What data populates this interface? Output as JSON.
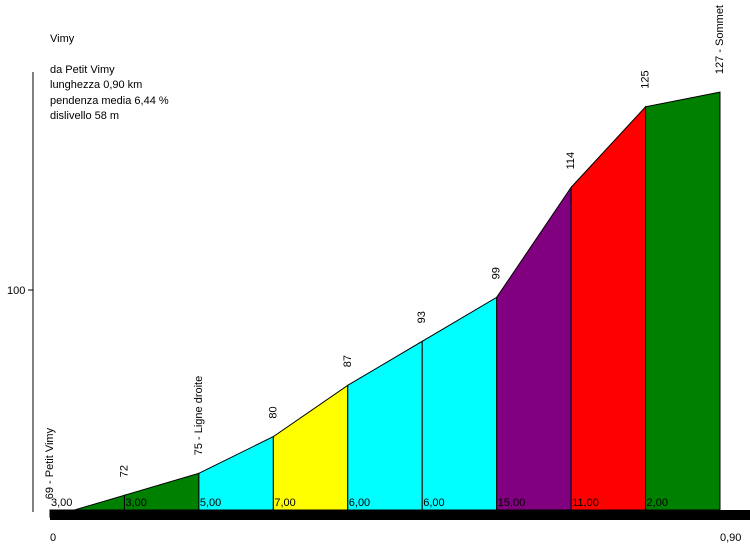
{
  "info": {
    "name": "Vimy",
    "from": "da Petit Vimy",
    "length": "lunghezza 0,90 km",
    "avg_gradient": "pendenza media 6,44 %",
    "elevation_gain": "dislivello 58 m"
  },
  "chart_data": {
    "type": "area",
    "title": "",
    "xlabel": "",
    "ylabel": "",
    "x_tick_labels": [
      "0",
      "0,90"
    ],
    "y_tick_labels": [
      {
        "value": 100,
        "label": "100"
      }
    ],
    "xlim": [
      0,
      0.9
    ],
    "ylim": [
      55,
      140
    ],
    "grid": false,
    "points": [
      {
        "km": 0.0,
        "alt": 69,
        "label": "69 - Petit Vimy"
      },
      {
        "km": 0.1,
        "alt": 72,
        "label": "72"
      },
      {
        "km": 0.2,
        "alt": 75,
        "label": "75 - Ligne droite"
      },
      {
        "km": 0.3,
        "alt": 80,
        "label": "80"
      },
      {
        "km": 0.4,
        "alt": 87,
        "label": "87"
      },
      {
        "km": 0.5,
        "alt": 93,
        "label": "93"
      },
      {
        "km": 0.6,
        "alt": 99,
        "label": "99"
      },
      {
        "km": 0.7,
        "alt": 114,
        "label": "114"
      },
      {
        "km": 0.8,
        "alt": 125,
        "label": "125"
      },
      {
        "km": 0.9,
        "alt": 127,
        "label": "127 - Sommet"
      }
    ],
    "segments": [
      {
        "gradient_label": "3,00",
        "color": "#008000"
      },
      {
        "gradient_label": "3,00",
        "color": "#008000"
      },
      {
        "gradient_label": "5,00",
        "color": "#00ffff"
      },
      {
        "gradient_label": "7,00",
        "color": "#ffff00"
      },
      {
        "gradient_label": "6,00",
        "color": "#00ffff"
      },
      {
        "gradient_label": "6,00",
        "color": "#00ffff"
      },
      {
        "gradient_label": "15,00",
        "color": "#800080"
      },
      {
        "gradient_label": "11,00",
        "color": "#ff0000"
      },
      {
        "gradient_label": "2,00",
        "color": "#008000"
      }
    ]
  }
}
